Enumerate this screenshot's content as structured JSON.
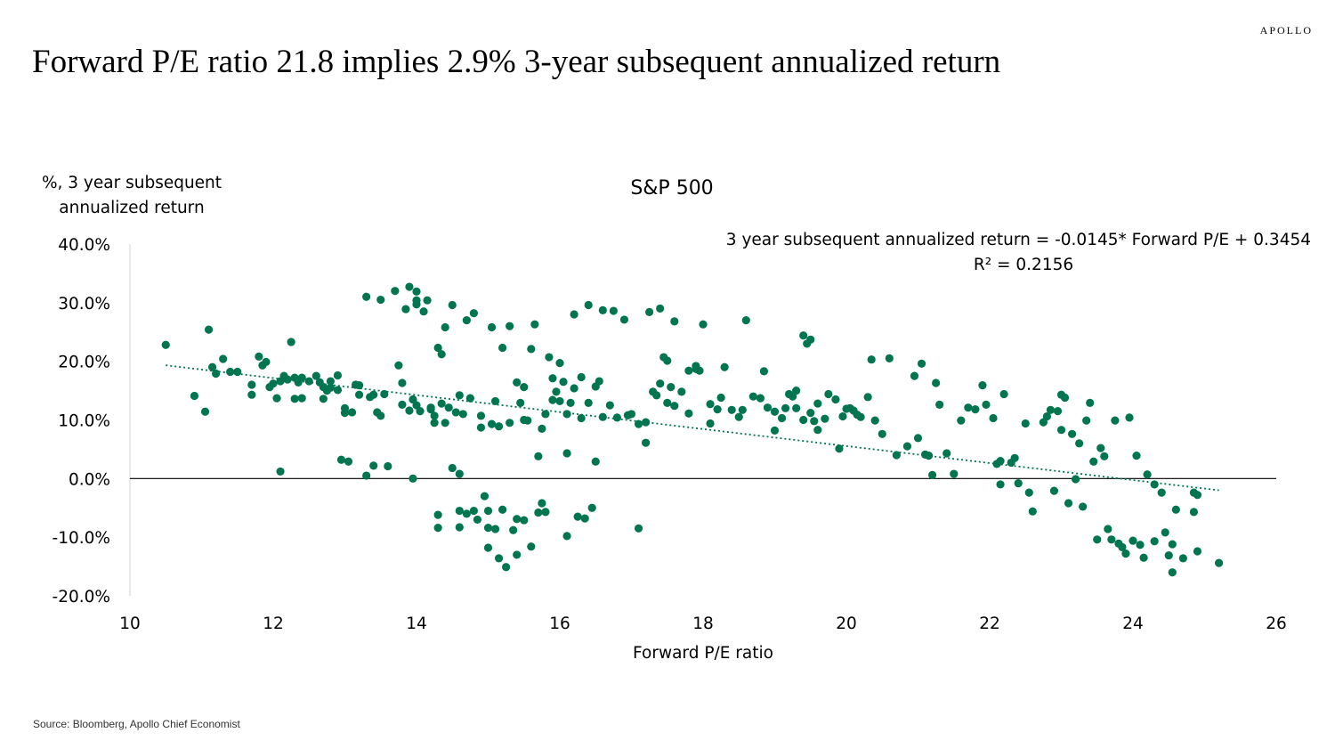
{
  "brand": "APOLLO",
  "title": "Forward P/E ratio 21.8 implies 2.9% 3-year subsequent annualized return",
  "source": "Source: Bloomberg, Apollo Chief Economist",
  "colors": {
    "point": "#00754F",
    "trendline": "#00754F",
    "axis": "#000000"
  },
  "chart_data": {
    "type": "scatter",
    "title": "S&P 500",
    "ylabel_lines": [
      "%, 3 year subsequent",
      "annualized return"
    ],
    "xlabel": "Forward P/E ratio",
    "xlim": [
      10,
      26
    ],
    "ylim": [
      -20,
      40
    ],
    "xticks": [
      10,
      12,
      14,
      16,
      18,
      20,
      22,
      24,
      26
    ],
    "xtick_labels": [
      "10",
      "12",
      "14",
      "16",
      "18",
      "20",
      "22",
      "24",
      "26"
    ],
    "yticks": [
      40,
      30,
      20,
      10,
      0,
      -10,
      -20
    ],
    "ytick_labels": [
      "40.0%",
      "30.0%",
      "20.0%",
      "10.0%",
      "0.0%",
      "-10.0%",
      "-20.0%"
    ],
    "grid": false,
    "equation": "3 year subsequent annualized return = -0.0145* Forward P/E + 0.3454",
    "r2": "R² = 0.2156",
    "trendline": {
      "slope": -0.0145,
      "intercept": 0.3454,
      "x_range": [
        10.5,
        25.2
      ]
    },
    "points": [
      [
        10.5,
        22.8
      ],
      [
        10.9,
        14.1
      ],
      [
        11.05,
        11.4
      ],
      [
        11.1,
        25.4
      ],
      [
        11.15,
        19.0
      ],
      [
        11.2,
        17.9
      ],
      [
        11.3,
        20.4
      ],
      [
        11.4,
        18.2
      ],
      [
        11.5,
        18.2
      ],
      [
        11.7,
        16.0
      ],
      [
        11.7,
        14.3
      ],
      [
        11.8,
        20.8
      ],
      [
        11.85,
        19.3
      ],
      [
        11.9,
        19.9
      ],
      [
        11.95,
        15.6
      ],
      [
        12.0,
        16.2
      ],
      [
        12.05,
        13.7
      ],
      [
        12.1,
        16.6
      ],
      [
        12.1,
        1.2
      ],
      [
        12.15,
        17.5
      ],
      [
        12.2,
        16.9
      ],
      [
        12.3,
        13.6
      ],
      [
        12.4,
        13.7
      ],
      [
        12.3,
        17.2
      ],
      [
        12.35,
        16.4
      ],
      [
        12.4,
        17.2
      ],
      [
        12.25,
        23.3
      ],
      [
        12.5,
        16.6
      ],
      [
        12.6,
        17.5
      ],
      [
        12.65,
        16.4
      ],
      [
        12.7,
        15.6
      ],
      [
        12.7,
        13.6
      ],
      [
        12.75,
        15.0
      ],
      [
        12.8,
        16.6
      ],
      [
        12.8,
        15.5
      ],
      [
        12.9,
        17.6
      ],
      [
        12.9,
        15.1
      ],
      [
        12.95,
        3.2
      ],
      [
        13.0,
        12.0
      ],
      [
        13.0,
        11.2
      ],
      [
        13.05,
        2.9
      ],
      [
        13.1,
        11.3
      ],
      [
        13.15,
        16.0
      ],
      [
        13.2,
        15.9
      ],
      [
        13.2,
        14.3
      ],
      [
        13.3,
        31.0
      ],
      [
        13.3,
        0.5
      ],
      [
        13.35,
        13.9
      ],
      [
        13.4,
        2.2
      ],
      [
        13.4,
        14.3
      ],
      [
        13.45,
        11.3
      ],
      [
        13.5,
        30.5
      ],
      [
        13.5,
        10.7
      ],
      [
        13.55,
        14.4
      ],
      [
        13.6,
        2.1
      ],
      [
        13.7,
        32.0
      ],
      [
        13.75,
        19.3
      ],
      [
        13.8,
        12.6
      ],
      [
        13.8,
        16.3
      ],
      [
        13.85,
        28.9
      ],
      [
        13.9,
        32.7
      ],
      [
        13.9,
        11.6
      ],
      [
        13.95,
        13.5
      ],
      [
        14.0,
        29.7
      ],
      [
        14.0,
        31.9
      ],
      [
        14.0,
        30.4
      ],
      [
        14.0,
        12.5
      ],
      [
        13.95,
        0.0
      ],
      [
        14.05,
        11.5
      ],
      [
        14.1,
        28.5
      ],
      [
        14.15,
        30.4
      ],
      [
        14.2,
        12.1
      ],
      [
        14.2,
        11.8
      ],
      [
        14.25,
        9.5
      ],
      [
        14.25,
        10.7
      ],
      [
        14.3,
        22.3
      ],
      [
        14.3,
        -6.2
      ],
      [
        14.3,
        -8.4
      ],
      [
        14.35,
        12.8
      ],
      [
        14.35,
        21.2
      ],
      [
        14.4,
        25.8
      ],
      [
        14.4,
        9.5
      ],
      [
        14.45,
        12.1
      ],
      [
        14.5,
        29.6
      ],
      [
        14.5,
        1.8
      ],
      [
        14.55,
        11.3
      ],
      [
        14.6,
        14.2
      ],
      [
        14.6,
        -5.5
      ],
      [
        14.6,
        -8.3
      ],
      [
        14.6,
        0.8
      ],
      [
        14.65,
        11.0
      ],
      [
        14.7,
        27.0
      ],
      [
        14.7,
        -6.0
      ],
      [
        14.75,
        13.7
      ],
      [
        14.8,
        28.2
      ],
      [
        14.8,
        -5.5
      ],
      [
        14.85,
        -7.0
      ],
      [
        14.9,
        10.7
      ],
      [
        14.9,
        8.7
      ],
      [
        14.95,
        -3.0
      ],
      [
        15.0,
        -5.5
      ],
      [
        15.0,
        -8.4
      ],
      [
        15.05,
        9.3
      ],
      [
        15.05,
        25.8
      ],
      [
        15.1,
        13.2
      ],
      [
        15.1,
        -8.6
      ],
      [
        15.15,
        8.9
      ],
      [
        15.2,
        22.3
      ],
      [
        15.2,
        -5.3
      ],
      [
        15.25,
        -15.1
      ],
      [
        15.3,
        9.5
      ],
      [
        15.3,
        26.0
      ],
      [
        15.35,
        -8.8
      ],
      [
        15.4,
        16.4
      ],
      [
        15.4,
        -6.9
      ],
      [
        15.4,
        -13.0
      ],
      [
        15.45,
        12.9
      ],
      [
        15.5,
        15.6
      ],
      [
        15.5,
        10.0
      ],
      [
        15.5,
        -7.1
      ],
      [
        15.55,
        9.9
      ],
      [
        15.6,
        22.1
      ],
      [
        15.6,
        -11.6
      ],
      [
        15.65,
        26.3
      ],
      [
        15.7,
        3.8
      ],
      [
        15.7,
        -5.8
      ],
      [
        15.75,
        -4.2
      ],
      [
        15.75,
        8.5
      ],
      [
        15.8,
        11.0
      ],
      [
        15.8,
        -5.7
      ],
      [
        15.85,
        20.7
      ],
      [
        15.9,
        17.1
      ],
      [
        15.9,
        13.4
      ],
      [
        15.95,
        14.8
      ],
      [
        16.0,
        19.7
      ],
      [
        16.0,
        13.2
      ],
      [
        16.05,
        16.5
      ],
      [
        16.1,
        4.3
      ],
      [
        16.1,
        11.0
      ],
      [
        16.1,
        -9.8
      ],
      [
        16.15,
        12.9
      ],
      [
        16.2,
        28.0
      ],
      [
        16.2,
        15.4
      ],
      [
        16.25,
        -6.5
      ],
      [
        16.3,
        17.3
      ],
      [
        16.3,
        10.3
      ],
      [
        16.35,
        -6.8
      ],
      [
        16.4,
        29.6
      ],
      [
        16.4,
        12.9
      ],
      [
        16.45,
        -5.0
      ],
      [
        16.5,
        2.9
      ],
      [
        16.5,
        15.7
      ],
      [
        16.55,
        16.6
      ],
      [
        16.6,
        28.7
      ],
      [
        16.6,
        10.5
      ],
      [
        16.7,
        12.5
      ],
      [
        16.75,
        28.6
      ],
      [
        16.8,
        10.4
      ],
      [
        16.9,
        27.1
      ],
      [
        16.95,
        10.8
      ],
      [
        17.0,
        11.0
      ],
      [
        17.1,
        9.3
      ],
      [
        17.1,
        -8.5
      ],
      [
        17.2,
        6.1
      ],
      [
        17.2,
        9.6
      ],
      [
        17.25,
        28.4
      ],
      [
        17.3,
        14.8
      ],
      [
        17.35,
        14.2
      ],
      [
        17.4,
        29.0
      ],
      [
        17.4,
        16.2
      ],
      [
        17.5,
        20.1
      ],
      [
        17.45,
        20.7
      ],
      [
        17.5,
        12.9
      ],
      [
        17.55,
        15.6
      ],
      [
        17.6,
        26.8
      ],
      [
        17.6,
        12.4
      ],
      [
        17.7,
        14.8
      ],
      [
        17.8,
        18.4
      ],
      [
        17.8,
        11.1
      ],
      [
        17.9,
        19.2
      ],
      [
        17.9,
        18.7
      ],
      [
        17.95,
        18.4
      ],
      [
        18.0,
        26.3
      ],
      [
        18.1,
        12.7
      ],
      [
        18.1,
        9.4
      ],
      [
        18.2,
        11.8
      ],
      [
        18.25,
        13.8
      ],
      [
        18.3,
        19.0
      ],
      [
        18.4,
        11.7
      ],
      [
        18.5,
        10.5
      ],
      [
        18.55,
        11.7
      ],
      [
        18.6,
        27.0
      ],
      [
        18.7,
        14.0
      ],
      [
        18.8,
        13.7
      ],
      [
        18.85,
        18.3
      ],
      [
        18.9,
        12.1
      ],
      [
        19.0,
        8.2
      ],
      [
        19.0,
        11.4
      ],
      [
        19.1,
        10.3
      ],
      [
        19.15,
        12.0
      ],
      [
        19.2,
        14.4
      ],
      [
        19.25,
        14.0
      ],
      [
        19.3,
        15.0
      ],
      [
        19.3,
        12.0
      ],
      [
        19.4,
        24.4
      ],
      [
        19.4,
        10.0
      ],
      [
        19.45,
        23.0
      ],
      [
        19.5,
        23.7
      ],
      [
        19.5,
        11.2
      ],
      [
        19.55,
        9.8
      ],
      [
        19.6,
        12.8
      ],
      [
        19.6,
        8.3
      ],
      [
        19.7,
        10.2
      ],
      [
        19.75,
        14.4
      ],
      [
        19.85,
        13.5
      ],
      [
        19.9,
        5.1
      ],
      [
        19.95,
        10.6
      ],
      [
        20.0,
        11.9
      ],
      [
        20.05,
        12.0
      ],
      [
        20.1,
        11.6
      ],
      [
        20.15,
        10.9
      ],
      [
        20.2,
        10.5
      ],
      [
        20.3,
        13.9
      ],
      [
        20.35,
        20.3
      ],
      [
        20.4,
        9.9
      ],
      [
        20.5,
        7.6
      ],
      [
        20.6,
        20.5
      ],
      [
        20.7,
        4.0
      ],
      [
        20.85,
        5.5
      ],
      [
        20.95,
        17.5
      ],
      [
        21.0,
        6.9
      ],
      [
        21.05,
        19.6
      ],
      [
        21.1,
        4.1
      ],
      [
        21.15,
        3.9
      ],
      [
        21.2,
        0.6
      ],
      [
        21.25,
        16.3
      ],
      [
        21.3,
        12.6
      ],
      [
        21.4,
        4.3
      ],
      [
        21.5,
        0.8
      ],
      [
        21.6,
        9.9
      ],
      [
        21.7,
        12.1
      ],
      [
        21.8,
        11.8
      ],
      [
        21.9,
        15.9
      ],
      [
        21.95,
        12.6
      ],
      [
        22.05,
        10.3
      ],
      [
        22.1,
        2.5
      ],
      [
        22.15,
        3.0
      ],
      [
        22.15,
        -1.0
      ],
      [
        22.2,
        14.4
      ],
      [
        22.3,
        2.7
      ],
      [
        22.35,
        3.5
      ],
      [
        22.4,
        -0.8
      ],
      [
        22.5,
        9.4
      ],
      [
        22.55,
        -2.4
      ],
      [
        22.6,
        -5.6
      ],
      [
        22.75,
        9.6
      ],
      [
        22.8,
        10.6
      ],
      [
        22.85,
        11.7
      ],
      [
        22.9,
        -2.1
      ],
      [
        22.95,
        11.5
      ],
      [
        23.0,
        8.3
      ],
      [
        23.0,
        14.3
      ],
      [
        23.05,
        13.8
      ],
      [
        23.1,
        -4.2
      ],
      [
        23.15,
        7.6
      ],
      [
        23.2,
        -0.1
      ],
      [
        23.25,
        6.0
      ],
      [
        23.3,
        -4.8
      ],
      [
        23.35,
        9.9
      ],
      [
        23.4,
        12.9
      ],
      [
        23.45,
        2.9
      ],
      [
        23.5,
        -10.4
      ],
      [
        23.55,
        5.2
      ],
      [
        23.6,
        3.8
      ],
      [
        23.65,
        -8.6
      ],
      [
        23.7,
        -10.4
      ],
      [
        23.75,
        9.9
      ],
      [
        23.8,
        -11.1
      ],
      [
        23.85,
        -11.7
      ],
      [
        23.9,
        -12.8
      ],
      [
        23.95,
        10.4
      ],
      [
        24.0,
        -10.6
      ],
      [
        24.05,
        3.9
      ],
      [
        24.1,
        -11.3
      ],
      [
        24.15,
        -13.5
      ],
      [
        24.2,
        0.7
      ],
      [
        24.3,
        -10.7
      ],
      [
        24.5,
        -13.1
      ],
      [
        24.55,
        -11.2
      ],
      [
        24.6,
        -5.3
      ],
      [
        24.7,
        -13.6
      ],
      [
        24.85,
        -2.4
      ],
      [
        24.9,
        -12.4
      ],
      [
        24.3,
        -1.0
      ],
      [
        24.4,
        -2.4
      ],
      [
        24.45,
        -9.2
      ],
      [
        24.55,
        -16.0
      ],
      [
        24.85,
        -5.7
      ],
      [
        24.9,
        -2.8
      ],
      [
        25.2,
        -14.4
      ],
      [
        15.15,
        -13.6
      ],
      [
        15.0,
        -11.8
      ]
    ]
  }
}
